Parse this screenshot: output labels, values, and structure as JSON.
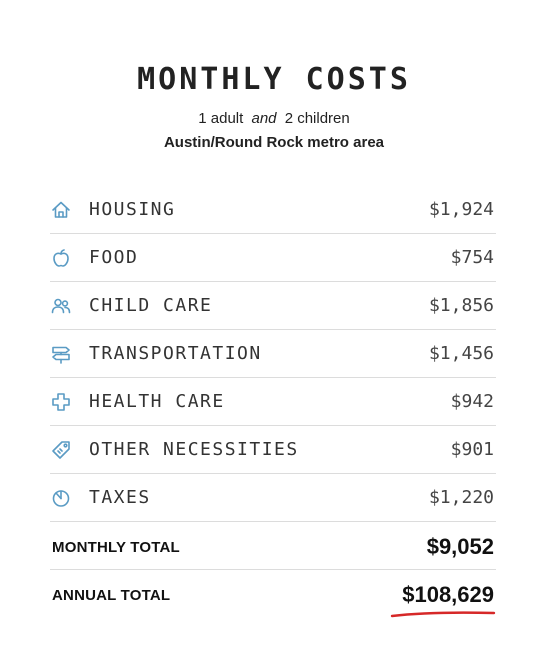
{
  "title": "MONTHLY COSTS",
  "subtitle": {
    "adults": "1 adult",
    "and": "and",
    "children": "2 children"
  },
  "location": "Austin/Round Rock metro area",
  "colors": {
    "icon": "#5a9bc4",
    "underline": "#d62828",
    "divider": "#dcdcdc"
  },
  "costs": [
    {
      "icon": "house-icon",
      "label": "HOUSING",
      "amount": "$1,924"
    },
    {
      "icon": "apple-icon",
      "label": "FOOD",
      "amount": "$754"
    },
    {
      "icon": "people-icon",
      "label": "CHILD CARE",
      "amount": "$1,856"
    },
    {
      "icon": "signpost-icon",
      "label": "TRANSPORTATION",
      "amount": "$1,456"
    },
    {
      "icon": "medical-cross-icon",
      "label": "HEALTH CARE",
      "amount": "$942"
    },
    {
      "icon": "tag-icon",
      "label": "OTHER NECESSITIES",
      "amount": "$901"
    },
    {
      "icon": "pie-chart-icon",
      "label": "TAXES",
      "amount": "$1,220"
    }
  ],
  "totals": {
    "monthly_label": "MONTHLY TOTAL",
    "monthly_value": "$9,052",
    "annual_label": "ANNUAL TOTAL",
    "annual_value": "$108,629"
  }
}
